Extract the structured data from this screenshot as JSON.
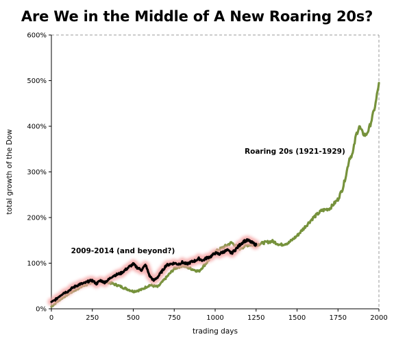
{
  "chart_data": {
    "type": "line",
    "title": "Are We in the Middle of A New Roaring 20s?",
    "xlabel": "trading days",
    "ylabel": "total growth of the Dow",
    "xlim": [
      0,
      2000
    ],
    "ylim": [
      0,
      600
    ],
    "x_ticks": [
      0,
      250,
      500,
      750,
      1000,
      1250,
      1500,
      1750,
      2000
    ],
    "x_tick_labels": [
      "0",
      "250",
      "500",
      "750",
      "1000",
      "1250",
      "1500",
      "1750",
      "2000"
    ],
    "y_ticks": [
      0,
      100,
      200,
      300,
      400,
      500,
      600
    ],
    "y_tick_labels": [
      "0%",
      "100%",
      "200%",
      "300%",
      "400%",
      "500%",
      "600%"
    ],
    "grid": false,
    "annotations": [
      {
        "text": "Roaring 20s (1921-1929)",
        "x": 1180,
        "y": 340
      },
      {
        "text": "2009-2014  (and beyond?)",
        "x": 120,
        "y": 122
      }
    ],
    "series": [
      {
        "name": "Roaring 20s (1921-1929)",
        "color": "#76923c",
        "x": [
          0,
          50,
          100,
          150,
          200,
          250,
          300,
          350,
          400,
          450,
          500,
          550,
          600,
          650,
          700,
          750,
          800,
          850,
          900,
          950,
          1000,
          1050,
          1100,
          1150,
          1200,
          1250,
          1300,
          1350,
          1400,
          1450,
          1500,
          1550,
          1600,
          1650,
          1700,
          1750,
          1780,
          1800,
          1820,
          1840,
          1860,
          1880,
          1900,
          1920,
          1940,
          1960,
          1980,
          2000
        ],
        "values": [
          5,
          20,
          32,
          42,
          52,
          57,
          60,
          58,
          52,
          45,
          38,
          42,
          52,
          48,
          68,
          88,
          95,
          88,
          82,
          102,
          125,
          135,
          145,
          132,
          140,
          140,
          145,
          148,
          140,
          145,
          160,
          180,
          200,
          215,
          220,
          240,
          265,
          295,
          330,
          340,
          380,
          400,
          385,
          380,
          395,
          420,
          450,
          495
        ]
      },
      {
        "name": "2009-2014 (and beyond?)",
        "color": "#000000",
        "glow": "#f4a6a6",
        "x": [
          0,
          25,
          50,
          75,
          100,
          125,
          150,
          175,
          200,
          225,
          250,
          275,
          300,
          325,
          350,
          375,
          400,
          425,
          450,
          475,
          500,
          525,
          550,
          575,
          600,
          625,
          650,
          675,
          700,
          725,
          750,
          775,
          800,
          825,
          850,
          875,
          900,
          925,
          950,
          975,
          1000,
          1025,
          1050,
          1075,
          1100,
          1125,
          1150,
          1175,
          1200,
          1225,
          1250
        ],
        "values": [
          14,
          20,
          28,
          35,
          38,
          45,
          50,
          54,
          56,
          60,
          62,
          55,
          62,
          58,
          64,
          72,
          75,
          78,
          85,
          92,
          98,
          90,
          85,
          96,
          72,
          62,
          70,
          82,
          95,
          98,
          100,
          98,
          102,
          98,
          102,
          105,
          110,
          106,
          112,
          115,
          122,
          120,
          125,
          128,
          122,
          130,
          140,
          148,
          150,
          145,
          140
        ]
      }
    ]
  }
}
